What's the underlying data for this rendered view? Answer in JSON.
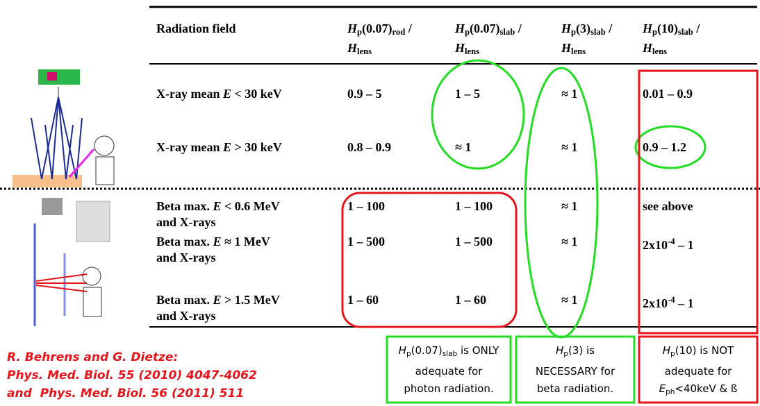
{
  "table": {
    "header": [
      [
        [
          "Radiation field"
        ]
      ],
      [
        [
          "H",
          "p",
          "(0.07)",
          "rod",
          " /"
        ],
        [
          "H",
          "lens"
        ]
      ],
      [
        [
          "H",
          "p",
          "(0.07)",
          "slab",
          " /"
        ],
        [
          "H",
          "lens"
        ]
      ],
      [
        [
          "H",
          "p",
          "(3)",
          "slab",
          " /"
        ],
        [
          "H",
          "lens"
        ]
      ],
      [
        [
          "H",
          "p",
          "(10)",
          "slab",
          " /"
        ],
        [
          "H",
          "lens"
        ]
      ]
    ],
    "rows": [
      [
        [
          [
            "X-ray mean ",
            "E",
            " < 30 keV"
          ]
        ],
        [
          [
            "0.9 – 5"
          ]
        ],
        [
          [
            "1 – 5"
          ]
        ],
        [
          [
            "≈ 1"
          ]
        ],
        [
          [
            "0.01 – 0.9"
          ]
        ]
      ],
      [
        [
          [
            "X-ray mean ",
            "E",
            " > 30 keV"
          ]
        ],
        [
          [
            "0.8 – 0.9"
          ]
        ],
        [
          [
            "≈ 1"
          ]
        ],
        [
          [
            "≈ 1"
          ]
        ],
        [
          [
            "0.9 – 1.2"
          ]
        ]
      ],
      [
        [
          [
            "Beta max. ",
            "E",
            " < 0.6 MeV"
          ],
          [
            "and X-rays"
          ]
        ],
        [
          [
            "1 – 100"
          ]
        ],
        [
          [
            "1 – 100"
          ]
        ],
        [
          [
            "≈ 1"
          ]
        ],
        [
          [
            "see above"
          ]
        ]
      ],
      [
        [
          [
            "Beta max. ",
            "E",
            " ≈ 1 MeV"
          ],
          [
            "and X-rays"
          ]
        ],
        [
          [
            "1 – 500"
          ]
        ],
        [
          [
            "1 – 500"
          ]
        ],
        [
          [
            "≈ 1"
          ]
        ],
        [
          [
            "2x10",
            "-4",
            " – 1"
          ]
        ]
      ],
      [
        [
          [
            "Beta max. ",
            "E",
            " > 1.5 MeV"
          ],
          [
            "and X-rays"
          ]
        ],
        [
          [
            "1 – 60"
          ]
        ],
        [
          [
            "1 – 60"
          ]
        ],
        [
          [
            "≈ 1"
          ]
        ],
        [
          [
            "2x10",
            "-4",
            " – 1"
          ]
        ]
      ]
    ]
  },
  "notes": [
    [
      [
        "H",
        "p",
        "(0.07)",
        "slab",
        " is ONLY"
      ],
      [
        "adequate for"
      ],
      [
        "photon radiation."
      ]
    ],
    [
      [
        "H",
        "p",
        "(3) is"
      ],
      [
        "NECESSARY for"
      ],
      [
        "beta radiation."
      ]
    ],
    [
      [
        "H",
        "p",
        "(10) is NOT"
      ],
      [
        "adequate for"
      ],
      [
        "E",
        "ph",
        "<40keV & ß"
      ]
    ]
  ],
  "citation": [
    "R. Behrens and G. Dietze:",
    "Phys. Med. Biol. 55 (2010) 4047-4062",
    "and  Phys. Med. Biol. 56 (2011) 511"
  ]
}
